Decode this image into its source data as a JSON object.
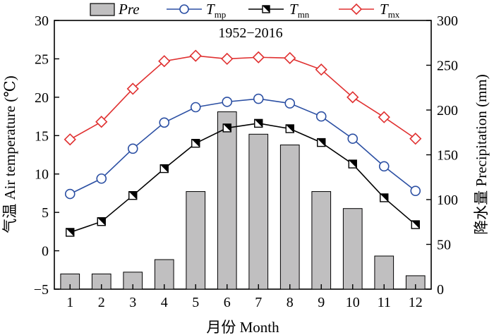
{
  "chart_data": {
    "type": "bar+line",
    "annotation": "1952−2016",
    "xlabel": "月份 Month",
    "ylabel_left": "气温 Air temperature (℃)",
    "ylabel_right": "降水量 Precipitation (mm)",
    "categories": [
      "1",
      "2",
      "3",
      "4",
      "5",
      "6",
      "7",
      "8",
      "9",
      "10",
      "11",
      "12"
    ],
    "ylim_left": [
      -5,
      30
    ],
    "yticks_left": [
      "−5",
      "0",
      "5",
      "10",
      "15",
      "20",
      "25",
      "30"
    ],
    "ylim_right": [
      0,
      300
    ],
    "yticks_right": [
      "0",
      "50",
      "100",
      "150",
      "200",
      "250",
      "300"
    ],
    "legend_placement": "top",
    "bars": {
      "name": "Pre",
      "axis": "right",
      "color": "#c0bfc0",
      "values": [
        17,
        17,
        19,
        33,
        109,
        198,
        173,
        161,
        109,
        90,
        37,
        15
      ]
    },
    "series": [
      {
        "name": "T",
        "name_sub": "mp",
        "axis": "left",
        "color": "#2b4fa3",
        "marker": "circle-open",
        "values": [
          7.4,
          9.4,
          13.3,
          16.7,
          18.7,
          19.4,
          19.8,
          19.2,
          17.5,
          14.6,
          11.0,
          7.8
        ]
      },
      {
        "name": "T",
        "name_sub": "mn",
        "axis": "left",
        "color": "#000000",
        "marker": "square-half",
        "values": [
          2.4,
          3.8,
          7.2,
          10.7,
          14.0,
          16.0,
          16.6,
          15.9,
          14.1,
          11.3,
          6.9,
          3.4
        ]
      },
      {
        "name": "T",
        "name_sub": "mx",
        "axis": "left",
        "color": "#e03030",
        "marker": "diamond-open",
        "values": [
          14.5,
          16.8,
          21.1,
          24.7,
          25.4,
          25.0,
          25.2,
          25.1,
          23.6,
          20.0,
          17.4,
          14.6
        ]
      }
    ]
  }
}
